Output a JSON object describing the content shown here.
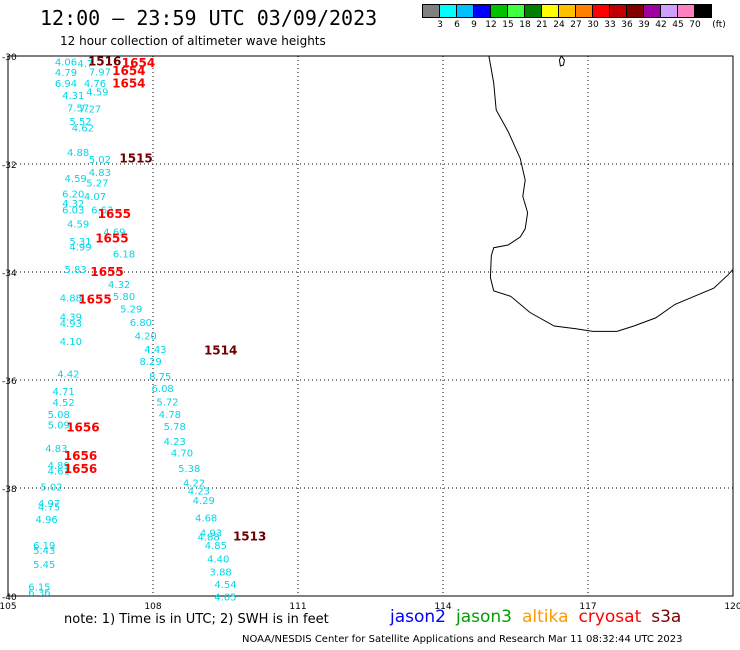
{
  "title": "12:00 – 23:59 UTC 03/09/2023",
  "subtitle": "12 hour collection of altimeter wave heights",
  "color_scale": {
    "unit": "(ft)",
    "colors": [
      "#808080",
      "#00ffff",
      "#00c0ff",
      "#0000ff",
      "#00c000",
      "#40ff40",
      "#008000",
      "#ffff00",
      "#ffc000",
      "#ff8000",
      "#ff0000",
      "#c00000",
      "#800000",
      "#a000a0",
      "#d0a0ff",
      "#ff80c0",
      "#000000"
    ],
    "labels": [
      "3",
      "6",
      "9",
      "12",
      "15",
      "18",
      "21",
      "24",
      "27",
      "30",
      "33",
      "36",
      "39",
      "42",
      "45",
      "70"
    ]
  },
  "axes": {
    "x_ticks": [
      "105",
      "108",
      "111",
      "114",
      "117",
      "120"
    ],
    "y_ticks": [
      "-30",
      "-32",
      "-34",
      "-36",
      "-38",
      "-40"
    ],
    "x_range": [
      105,
      120
    ],
    "y_range": [
      -40,
      -30
    ]
  },
  "passes": [
    {
      "time": "1516",
      "color": "#6e0000",
      "lon": 107.0,
      "lat": -30.18
    },
    {
      "time": "1654",
      "color": "#ff0000",
      "lon": 107.7,
      "lat": -30.2
    },
    {
      "time": "1654",
      "color": "#ff0000",
      "lon": 107.5,
      "lat": -30.35
    },
    {
      "time": "1654",
      "color": "#ff0000",
      "lon": 107.5,
      "lat": -30.58
    },
    {
      "time": "1515",
      "color": "#6e0000",
      "lon": 107.65,
      "lat": -31.97
    },
    {
      "time": "1655",
      "color": "#ff0000",
      "lon": 107.2,
      "lat": -33.0
    },
    {
      "time": "1655",
      "color": "#ff0000",
      "lon": 107.15,
      "lat": -33.45
    },
    {
      "time": "1655",
      "color": "#ff0000",
      "lon": 107.05,
      "lat": -34.07
    },
    {
      "time": "1655",
      "color": "#ff0000",
      "lon": 106.8,
      "lat": -34.58
    },
    {
      "time": "1514",
      "color": "#6e0000",
      "lon": 109.4,
      "lat": -35.53
    },
    {
      "time": "1656",
      "color": "#ff0000",
      "lon": 106.55,
      "lat": -36.95
    },
    {
      "time": "1656",
      "color": "#ff0000",
      "lon": 106.5,
      "lat": -37.48
    },
    {
      "time": "1656",
      "color": "#ff0000",
      "lon": 106.5,
      "lat": -37.72
    },
    {
      "time": "1513",
      "color": "#6e0000",
      "lon": 110.0,
      "lat": -38.97
    }
  ],
  "wave_heights": [
    {
      "value": "4.06",
      "lon": 106.2,
      "lat": -30.18
    },
    {
      "value": "4.7",
      "lon": 106.6,
      "lat": -30.2
    },
    {
      "value": "4.79",
      "lon": 106.2,
      "lat": -30.37
    },
    {
      "value": "7.97",
      "lon": 106.9,
      "lat": -30.36
    },
    {
      "value": "6.94",
      "lon": 106.2,
      "lat": -30.57
    },
    {
      "value": "4.76",
      "lon": 106.8,
      "lat": -30.57
    },
    {
      "value": "4.59",
      "lon": 106.85,
      "lat": -30.73
    },
    {
      "value": "4.31",
      "lon": 106.35,
      "lat": -30.8
    },
    {
      "value": "7.57",
      "lon": 106.45,
      "lat": -31.03
    },
    {
      "value": "7.27",
      "lon": 106.7,
      "lat": -31.05
    },
    {
      "value": "5.52",
      "lon": 106.5,
      "lat": -31.28
    },
    {
      "value": "4.62",
      "lon": 106.55,
      "lat": -31.4
    },
    {
      "value": "4.88",
      "lon": 106.45,
      "lat": -31.85
    },
    {
      "value": "5.02",
      "lon": 106.9,
      "lat": -31.98
    },
    {
      "value": "4.83",
      "lon": 106.9,
      "lat": -32.22
    },
    {
      "value": "4.59",
      "lon": 106.4,
      "lat": -32.33
    },
    {
      "value": "5.27",
      "lon": 106.85,
      "lat": -32.42
    },
    {
      "value": "6.20",
      "lon": 106.35,
      "lat": -32.62
    },
    {
      "value": "4.07",
      "lon": 106.8,
      "lat": -32.67
    },
    {
      "value": "4.32",
      "lon": 106.35,
      "lat": -32.8
    },
    {
      "value": "6.03",
      "lon": 106.35,
      "lat": -32.92
    },
    {
      "value": "6.63",
      "lon": 106.95,
      "lat": -32.92
    },
    {
      "value": "4.59",
      "lon": 106.45,
      "lat": -33.18
    },
    {
      "value": "4.69",
      "lon": 107.2,
      "lat": -33.32
    },
    {
      "value": "5.31",
      "lon": 106.5,
      "lat": -33.5
    },
    {
      "value": "4.99",
      "lon": 106.5,
      "lat": -33.6
    },
    {
      "value": "6.18",
      "lon": 107.4,
      "lat": -33.73
    },
    {
      "value": "5.83",
      "lon": 106.4,
      "lat": -34.02
    },
    {
      "value": "4.32",
      "lon": 107.3,
      "lat": -34.3
    },
    {
      "value": "4.88",
      "lon": 106.3,
      "lat": -34.55
    },
    {
      "value": "5.80",
      "lon": 107.4,
      "lat": -34.52
    },
    {
      "value": "5.29",
      "lon": 107.55,
      "lat": -34.75
    },
    {
      "value": "4.39",
      "lon": 106.3,
      "lat": -34.9
    },
    {
      "value": "4.93",
      "lon": 106.3,
      "lat": -35.02
    },
    {
      "value": "6.80",
      "lon": 107.75,
      "lat": -35.0
    },
    {
      "value": "4.20",
      "lon": 107.85,
      "lat": -35.25
    },
    {
      "value": "4.10",
      "lon": 106.3,
      "lat": -35.35
    },
    {
      "value": "4.43",
      "lon": 108.05,
      "lat": -35.5
    },
    {
      "value": "8.29",
      "lon": 107.95,
      "lat": -35.72
    },
    {
      "value": "4.42",
      "lon": 106.25,
      "lat": -35.95
    },
    {
      "value": "8.75",
      "lon": 108.15,
      "lat": -36.0
    },
    {
      "value": "4.71",
      "lon": 106.15,
      "lat": -36.28
    },
    {
      "value": "6.08",
      "lon": 108.2,
      "lat": -36.22
    },
    {
      "value": "4.52",
      "lon": 106.15,
      "lat": -36.48
    },
    {
      "value": "5.72",
      "lon": 108.3,
      "lat": -36.47
    },
    {
      "value": "5.08",
      "lon": 106.05,
      "lat": -36.7
    },
    {
      "value": "4.78",
      "lon": 108.35,
      "lat": -36.7
    },
    {
      "value": "5.09",
      "lon": 106.05,
      "lat": -36.9
    },
    {
      "value": "5.78",
      "lon": 108.45,
      "lat": -36.93
    },
    {
      "value": "4.23",
      "lon": 108.45,
      "lat": -37.2
    },
    {
      "value": "4.83",
      "lon": 106.0,
      "lat": -37.33
    },
    {
      "value": "4.70",
      "lon": 108.6,
      "lat": -37.42
    },
    {
      "value": "4.89",
      "lon": 106.05,
      "lat": -37.65
    },
    {
      "value": "4.61",
      "lon": 106.05,
      "lat": -37.75
    },
    {
      "value": "5.38",
      "lon": 108.75,
      "lat": -37.7
    },
    {
      "value": "4.22",
      "lon": 108.85,
      "lat": -37.97
    },
    {
      "value": "5.02",
      "lon": 105.9,
      "lat": -38.05
    },
    {
      "value": "4.23",
      "lon": 108.95,
      "lat": -38.12
    },
    {
      "value": "4.29",
      "lon": 109.05,
      "lat": -38.3
    },
    {
      "value": "4.97",
      "lon": 105.85,
      "lat": -38.35
    },
    {
      "value": "4.75",
      "lon": 105.85,
      "lat": -38.42
    },
    {
      "value": "4.68",
      "lon": 109.1,
      "lat": -38.62
    },
    {
      "value": "4.96",
      "lon": 105.8,
      "lat": -38.65
    },
    {
      "value": "4.93",
      "lon": 109.2,
      "lat": -38.9
    },
    {
      "value": "4.88",
      "lon": 109.15,
      "lat": -38.97
    },
    {
      "value": "6.19",
      "lon": 105.75,
      "lat": -39.13
    },
    {
      "value": "5.43",
      "lon": 105.75,
      "lat": -39.22
    },
    {
      "value": "4.85",
      "lon": 109.3,
      "lat": -39.13
    },
    {
      "value": "4.40",
      "lon": 109.35,
      "lat": -39.38
    },
    {
      "value": "5.45",
      "lon": 105.75,
      "lat": -39.48
    },
    {
      "value": "3.88",
      "lon": 109.4,
      "lat": -39.62
    },
    {
      "value": "4.54",
      "lon": 109.5,
      "lat": -39.85
    },
    {
      "value": "6.15",
      "lon": 105.65,
      "lat": -39.9
    },
    {
      "value": "6.36",
      "lon": 105.65,
      "lat": -40.0
    },
    {
      "value": "4.05",
      "lon": 109.5,
      "lat": -40.08
    }
  ],
  "coastline": [
    [
      114.95,
      -30.0
    ],
    [
      115.05,
      -30.5
    ],
    [
      115.1,
      -31.0
    ],
    [
      115.35,
      -31.4
    ],
    [
      115.6,
      -31.9
    ],
    [
      115.7,
      -32.3
    ],
    [
      115.65,
      -32.6
    ],
    [
      115.75,
      -32.9
    ],
    [
      115.7,
      -33.2
    ],
    [
      115.6,
      -33.35
    ],
    [
      115.35,
      -33.5
    ],
    [
      115.05,
      -33.55
    ],
    [
      115.0,
      -33.7
    ],
    [
      114.98,
      -34.1
    ],
    [
      115.05,
      -34.35
    ],
    [
      115.4,
      -34.45
    ],
    [
      115.8,
      -34.75
    ],
    [
      116.3,
      -35.0
    ],
    [
      116.75,
      -35.05
    ],
    [
      117.1,
      -35.1
    ],
    [
      117.6,
      -35.1
    ],
    [
      117.95,
      -35.0
    ],
    [
      118.4,
      -34.85
    ],
    [
      118.8,
      -34.6
    ],
    [
      119.2,
      -34.45
    ],
    [
      119.6,
      -34.3
    ],
    [
      119.9,
      -34.05
    ],
    [
      120.0,
      -33.95
    ]
  ],
  "note": "note: 1) Time is in UTC; 2) SWH is in feet",
  "satellites": [
    {
      "name": "jason2",
      "color": "#0000ff"
    },
    {
      "name": "jason3",
      "color": "#00a000"
    },
    {
      "name": "altika",
      "color": "#ff9900"
    },
    {
      "name": "cryosat",
      "color": "#ff0000"
    },
    {
      "name": "s3a",
      "color": "#800000"
    }
  ],
  "credit": "NOAA/NESDIS Center for Satellite Applications and Research    Mar 11 08:32:44 UTC 2023"
}
